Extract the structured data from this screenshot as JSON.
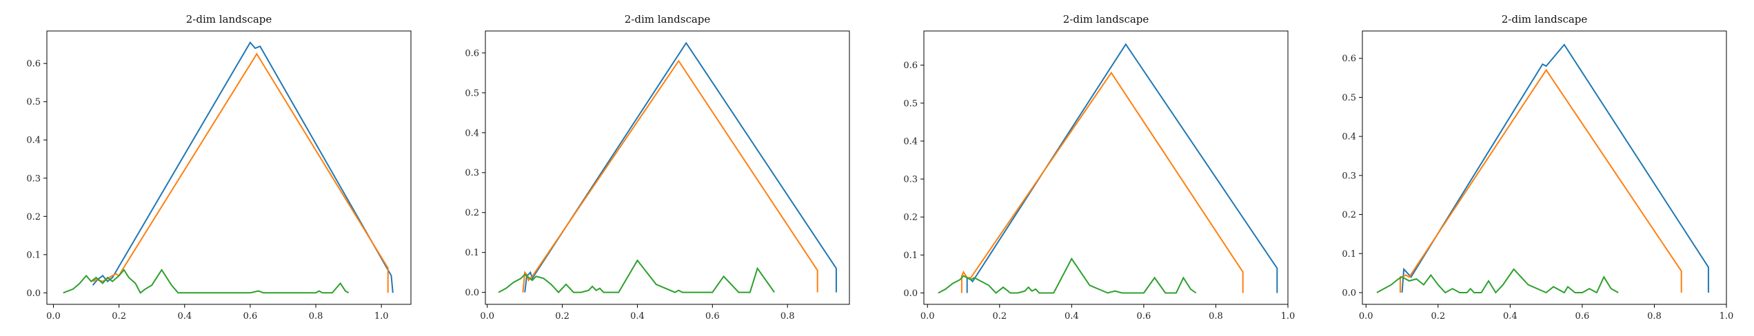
{
  "colors": {
    "series1": "#1f77b4",
    "series2": "#ff7f0e",
    "series3": "#2ca02c"
  },
  "chart_data": [
    {
      "type": "line",
      "title": "2-dim landscape",
      "xlabel": "",
      "ylabel": "",
      "xlim": [
        -0.02,
        1.09
      ],
      "ylim": [
        -0.03,
        0.685
      ],
      "xticks": [
        "0.0",
        "0.2",
        "0.4",
        "0.6",
        "0.8",
        "1.0"
      ],
      "yticks": [
        "0.0",
        "0.1",
        "0.2",
        "0.3",
        "0.4",
        "0.5",
        "0.6"
      ],
      "grid": false,
      "series": [
        {
          "x": [
            0.12,
            0.135,
            0.15,
            0.165,
            0.18,
            0.6,
            0.615,
            0.63,
            1.03,
            1.035
          ],
          "y": [
            0.02,
            0.035,
            0.045,
            0.03,
            0.04,
            0.655,
            0.64,
            0.645,
            0.045,
            0.0
          ]
        },
        {
          "x": [
            0.12,
            0.13,
            0.15,
            0.17,
            0.19,
            0.2,
            0.21,
            0.62,
            1.02,
            1.02
          ],
          "y": [
            0.03,
            0.035,
            0.03,
            0.04,
            0.05,
            0.045,
            0.06,
            0.625,
            0.065,
            0.0
          ]
        },
        {
          "x": [
            0.03,
            0.06,
            0.08,
            0.1,
            0.115,
            0.13,
            0.15,
            0.165,
            0.18,
            0.2,
            0.215,
            0.23,
            0.25,
            0.265,
            0.28,
            0.3,
            0.33,
            0.36,
            0.38,
            0.42,
            0.5,
            0.55,
            0.6,
            0.625,
            0.64,
            0.7,
            0.8,
            0.81,
            0.82,
            0.85,
            0.875,
            0.89,
            0.9
          ],
          "y": [
            0.0,
            0.01,
            0.025,
            0.045,
            0.03,
            0.04,
            0.025,
            0.04,
            0.03,
            0.045,
            0.06,
            0.04,
            0.025,
            0.0,
            0.01,
            0.02,
            0.06,
            0.02,
            0.0,
            0.0,
            0.0,
            0.0,
            0.0,
            0.005,
            0.0,
            0.0,
            0.0,
            0.005,
            0.0,
            0.0,
            0.025,
            0.005,
            0.0
          ]
        }
      ]
    },
    {
      "type": "line",
      "title": "2-dim landscape",
      "xlabel": "",
      "ylabel": "",
      "xlim": [
        -0.005,
        0.965
      ],
      "ylim": [
        -0.03,
        0.655
      ],
      "xticks": [
        "0.0",
        "0.2",
        "0.4",
        "0.6",
        "0.8"
      ],
      "yticks": [
        "0.0",
        "0.1",
        "0.2",
        "0.3",
        "0.4",
        "0.5",
        "0.6"
      ],
      "grid": false,
      "series": [
        {
          "x": [
            0.1,
            0.105,
            0.115,
            0.12,
            0.53,
            0.93,
            0.93
          ],
          "y": [
            0.0,
            0.04,
            0.05,
            0.035,
            0.625,
            0.06,
            0.0
          ]
        },
        {
          "x": [
            0.095,
            0.1,
            0.105,
            0.11,
            0.12,
            0.51,
            0.88,
            0.88
          ],
          "y": [
            0.0,
            0.05,
            0.045,
            0.03,
            0.04,
            0.58,
            0.055,
            0.0
          ]
        },
        {
          "x": [
            0.03,
            0.05,
            0.07,
            0.09,
            0.1,
            0.12,
            0.13,
            0.15,
            0.17,
            0.19,
            0.21,
            0.23,
            0.25,
            0.27,
            0.28,
            0.29,
            0.3,
            0.31,
            0.33,
            0.35,
            0.4,
            0.45,
            0.5,
            0.51,
            0.52,
            0.54,
            0.6,
            0.63,
            0.67,
            0.7,
            0.72,
            0.75,
            0.765
          ],
          "y": [
            0.0,
            0.01,
            0.025,
            0.035,
            0.045,
            0.03,
            0.04,
            0.035,
            0.02,
            0.0,
            0.02,
            0.0,
            0.0,
            0.005,
            0.015,
            0.005,
            0.01,
            0.0,
            0.0,
            0.0,
            0.08,
            0.02,
            0.0,
            0.005,
            0.0,
            0.0,
            0.0,
            0.04,
            0.0,
            0.0,
            0.06,
            0.02,
            0.0
          ]
        }
      ]
    },
    {
      "type": "line",
      "title": "2-dim landscape",
      "xlabel": "",
      "ylabel": "",
      "xlim": [
        -0.01,
        1.0
      ],
      "ylim": [
        -0.03,
        0.69
      ],
      "xticks": [
        "0.0",
        "0.2",
        "0.4",
        "0.6",
        "0.8",
        "1.0"
      ],
      "yticks": [
        "0.0",
        "0.1",
        "0.2",
        "0.3",
        "0.4",
        "0.5",
        "0.6"
      ],
      "grid": false,
      "series": [
        {
          "x": [
            0.11,
            0.11,
            0.115,
            0.125,
            0.55,
            0.97,
            0.97
          ],
          "y": [
            0.0,
            0.04,
            0.04,
            0.03,
            0.655,
            0.065,
            0.0
          ]
        },
        {
          "x": [
            0.095,
            0.095,
            0.1,
            0.11,
            0.12,
            0.51,
            0.875,
            0.875
          ],
          "y": [
            0.0,
            0.045,
            0.055,
            0.04,
            0.04,
            0.58,
            0.055,
            0.0
          ]
        },
        {
          "x": [
            0.03,
            0.05,
            0.07,
            0.09,
            0.1,
            0.12,
            0.13,
            0.15,
            0.17,
            0.19,
            0.21,
            0.23,
            0.25,
            0.27,
            0.28,
            0.29,
            0.3,
            0.31,
            0.33,
            0.35,
            0.4,
            0.45,
            0.5,
            0.52,
            0.54,
            0.55,
            0.6,
            0.63,
            0.66,
            0.69,
            0.71,
            0.73,
            0.745
          ],
          "y": [
            0.0,
            0.01,
            0.025,
            0.035,
            0.045,
            0.035,
            0.04,
            0.03,
            0.02,
            0.0,
            0.015,
            0.0,
            0.0,
            0.005,
            0.015,
            0.005,
            0.01,
            0.0,
            0.0,
            0.0,
            0.09,
            0.02,
            0.0,
            0.005,
            0.0,
            0.0,
            0.0,
            0.04,
            0.0,
            0.0,
            0.04,
            0.01,
            0.0
          ]
        }
      ]
    },
    {
      "type": "line",
      "title": "2-dim landscape",
      "xlabel": "",
      "ylabel": "",
      "xlim": [
        -0.01,
        1.0
      ],
      "ylim": [
        -0.03,
        0.67
      ],
      "xticks": [
        "0.0",
        "0.2",
        "0.4",
        "0.6",
        "0.8",
        "1.0"
      ],
      "yticks": [
        "0.0",
        "0.1",
        "0.2",
        "0.3",
        "0.4",
        "0.5",
        "0.6"
      ],
      "grid": false,
      "series": [
        {
          "x": [
            0.1,
            0.105,
            0.115,
            0.125,
            0.49,
            0.5,
            0.55,
            0.95,
            0.95
          ],
          "y": [
            0.0,
            0.06,
            0.05,
            0.04,
            0.585,
            0.58,
            0.635,
            0.065,
            0.0
          ]
        },
        {
          "x": [
            0.095,
            0.095,
            0.1,
            0.11,
            0.12,
            0.5,
            0.875,
            0.875
          ],
          "y": [
            0.0,
            0.04,
            0.04,
            0.045,
            0.04,
            0.57,
            0.055,
            0.0
          ]
        },
        {
          "x": [
            0.03,
            0.05,
            0.07,
            0.09,
            0.1,
            0.12,
            0.14,
            0.16,
            0.18,
            0.2,
            0.22,
            0.24,
            0.26,
            0.28,
            0.29,
            0.3,
            0.32,
            0.34,
            0.36,
            0.38,
            0.41,
            0.45,
            0.5,
            0.52,
            0.55,
            0.56,
            0.58,
            0.6,
            0.62,
            0.64,
            0.66,
            0.68,
            0.7
          ],
          "y": [
            0.0,
            0.01,
            0.02,
            0.035,
            0.04,
            0.03,
            0.035,
            0.02,
            0.045,
            0.02,
            0.0,
            0.01,
            0.0,
            0.0,
            0.01,
            0.0,
            0.0,
            0.03,
            0.0,
            0.02,
            0.06,
            0.02,
            0.0,
            0.015,
            0.0,
            0.015,
            0.0,
            0.0,
            0.01,
            0.0,
            0.04,
            0.01,
            0.0
          ]
        }
      ]
    }
  ]
}
